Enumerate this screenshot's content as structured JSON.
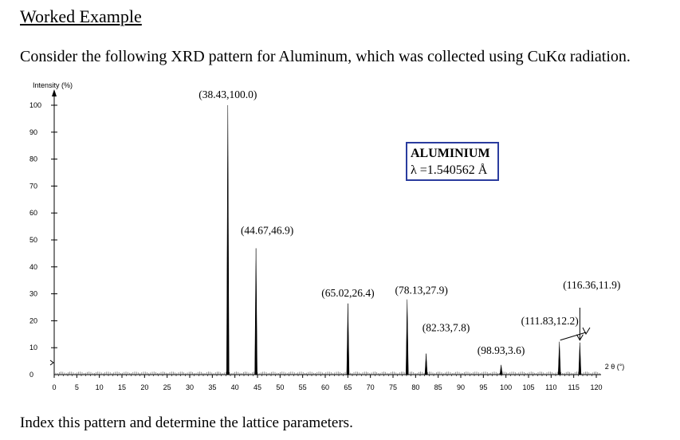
{
  "heading": "Worked Example",
  "prompt_text": "Consider the following XRD pattern for Aluminum, which was collected using CuKα radiation.",
  "footer_text": "Index this pattern and determine the lattice parameters.",
  "legend": {
    "title": "ALUMINIUM",
    "wavelength": "λ =1.540562 Å"
  },
  "chart_data": {
    "type": "line",
    "ylabel": "Intensity (%)",
    "xlabel": "2 θ (°)",
    "xlim": [
      0,
      120
    ],
    "ylim": [
      0,
      100
    ],
    "x_ticks": [
      "0",
      "5",
      "10",
      "15",
      "20",
      "25",
      "30",
      "35",
      "40",
      "45",
      "50",
      "55",
      "60",
      "65",
      "70",
      "75",
      "80",
      "85",
      "90",
      "95",
      "100",
      "105",
      "110",
      "115",
      "120"
    ],
    "y_ticks": [
      "0",
      "10",
      "20",
      "30",
      "40",
      "50",
      "60",
      "70",
      "80",
      "90",
      "100"
    ],
    "peaks": [
      {
        "x": 38.43,
        "y": 100.0,
        "label": "(38.43,100.0)"
      },
      {
        "x": 44.67,
        "y": 46.9,
        "label": "(44.67,46.9)"
      },
      {
        "x": 65.02,
        "y": 26.4,
        "label": "(65.02,26.4)"
      },
      {
        "x": 78.13,
        "y": 27.9,
        "label": "(78.13,27.9)"
      },
      {
        "x": 82.33,
        "y": 7.8,
        "label": "(82.33,7.8)"
      },
      {
        "x": 98.93,
        "y": 3.6,
        "label": "(98.93,3.6)"
      },
      {
        "x": 111.83,
        "y": 12.2,
        "label": "(111.83,12.2)"
      },
      {
        "x": 116.36,
        "y": 11.9,
        "label": "(116.36,11.9)"
      }
    ],
    "grid": false,
    "legend_position": "upper-right"
  }
}
